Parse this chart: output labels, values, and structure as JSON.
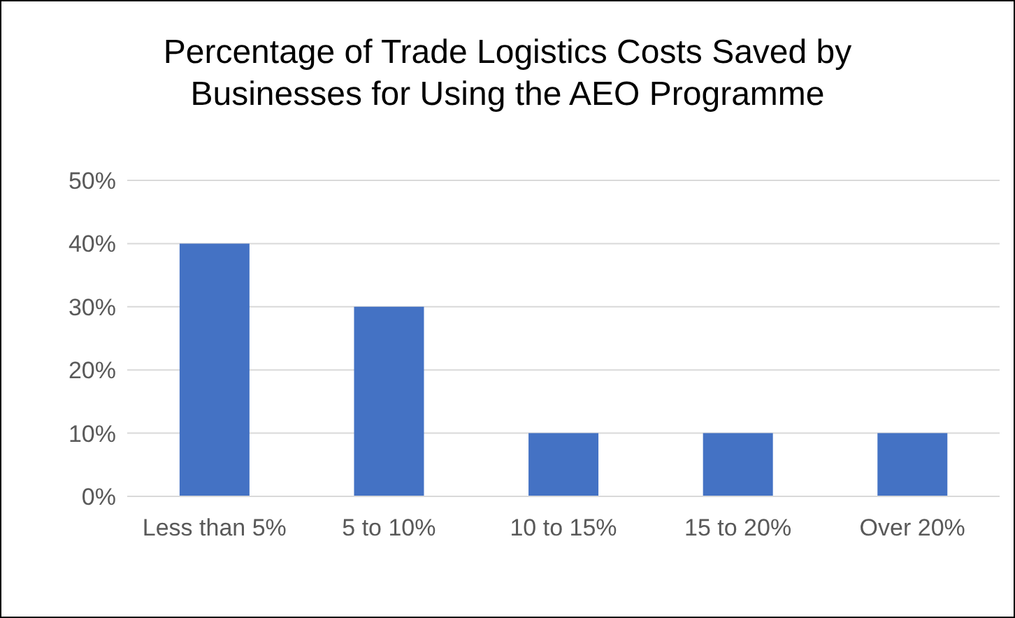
{
  "chart_data": {
    "type": "bar",
    "title": "Percentage of Trade Logistics Costs Saved by Businesses for Using the AEO Programme",
    "categories": [
      "Less than 5%",
      "5 to 10%",
      "10 to 15%",
      "15 to 20%",
      "Over 20%"
    ],
    "values": [
      40,
      30,
      10,
      10,
      10
    ],
    "color": "#4472c4",
    "ylim": [
      0,
      50
    ],
    "yticks": [
      {
        "value": 0,
        "label": "0%"
      },
      {
        "value": 10,
        "label": "10%"
      },
      {
        "value": 20,
        "label": "20%"
      },
      {
        "value": 30,
        "label": "30%"
      },
      {
        "value": 40,
        "label": "40%"
      },
      {
        "value": 50,
        "label": "50%"
      }
    ],
    "grid": "y"
  }
}
